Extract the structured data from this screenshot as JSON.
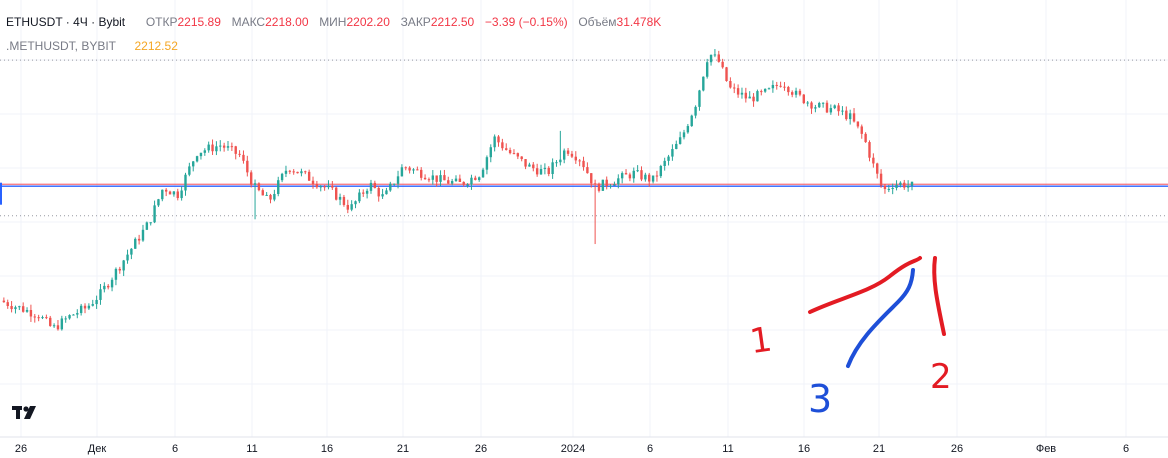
{
  "legend": {
    "symbol": "ETHUSDT · 4Ч · Bybit",
    "open_label": "ОТКР",
    "open_value": "2215.89",
    "high_label": "МАКС",
    "high_value": "2218.00",
    "low_label": "МИН",
    "low_value": "2202.20",
    "close_label": "ЗАКР",
    "close_value": "2212.50",
    "change": "−3.39 (−0.15%)",
    "volume_label": "Объём",
    "volume_value": "31.478K",
    "secondary_symbol": ".METHUSDT, BYBIT",
    "secondary_value": "2212.52"
  },
  "colors": {
    "up": "#26a69a",
    "down": "#ef5350",
    "hline_blue": "#2962ff",
    "hline_red": "#f23645",
    "annotation_red": "#e31b23",
    "annotation_blue": "#1e4fd8",
    "secondary_value": "#f5a623"
  },
  "chart_data": {
    "type": "candlestick",
    "timeframe": "4H",
    "x_tick_labels": [
      "26",
      "Дек",
      "6",
      "11",
      "16",
      "21",
      "26",
      "2024",
      "6",
      "11",
      "16",
      "21",
      "26",
      "Фев",
      "6"
    ],
    "price_path": [
      [
        0.0,
        2050
      ],
      [
        0.04,
        2030
      ],
      [
        0.055,
        2010
      ],
      [
        0.075,
        2030
      ],
      [
        0.09,
        2040
      ],
      [
        0.105,
        2060
      ],
      [
        0.125,
        2100
      ],
      [
        0.14,
        2130
      ],
      [
        0.155,
        2160
      ],
      [
        0.17,
        2210
      ],
      [
        0.185,
        2200
      ],
      [
        0.205,
        2260
      ],
      [
        0.23,
        2270
      ],
      [
        0.25,
        2255
      ],
      [
        0.265,
        2210
      ],
      [
        0.28,
        2190
      ],
      [
        0.3,
        2240
      ],
      [
        0.32,
        2225
      ],
      [
        0.345,
        2205
      ],
      [
        0.365,
        2180
      ],
      [
        0.385,
        2215
      ],
      [
        0.4,
        2195
      ],
      [
        0.42,
        2240
      ],
      [
        0.44,
        2230
      ],
      [
        0.46,
        2220
      ],
      [
        0.48,
        2215
      ],
      [
        0.5,
        2230
      ],
      [
        0.515,
        2280
      ],
      [
        0.53,
        2260
      ],
      [
        0.55,
        2240
      ],
      [
        0.57,
        2230
      ],
      [
        0.59,
        2265
      ],
      [
        0.605,
        2250
      ],
      [
        0.62,
        2210
      ],
      [
        0.64,
        2220
      ],
      [
        0.66,
        2230
      ],
      [
        0.68,
        2220
      ],
      [
        0.695,
        2250
      ],
      [
        0.71,
        2280
      ],
      [
        0.725,
        2330
      ],
      [
        0.738,
        2400
      ],
      [
        0.748,
        2390
      ],
      [
        0.76,
        2350
      ],
      [
        0.78,
        2335
      ],
      [
        0.8,
        2345
      ],
      [
        0.815,
        2360
      ],
      [
        0.83,
        2340
      ],
      [
        0.85,
        2325
      ],
      [
        0.87,
        2320
      ],
      [
        0.885,
        2310
      ],
      [
        0.9,
        2280
      ],
      [
        0.91,
        2240
      ],
      [
        0.92,
        2205
      ],
      [
        0.93,
        2215
      ],
      [
        0.94,
        2215
      ],
      [
        0.95,
        2212
      ]
    ],
    "spikes": [
      {
        "t": 0.265,
        "low": 2165
      },
      {
        "t": 0.62,
        "low": 2130
      },
      {
        "t": 0.585,
        "high": 2290
      }
    ],
    "horizontal_levels": [
      2212.5,
      2170,
      2390
    ],
    "annotations": [
      "1",
      "2",
      "3"
    ]
  }
}
